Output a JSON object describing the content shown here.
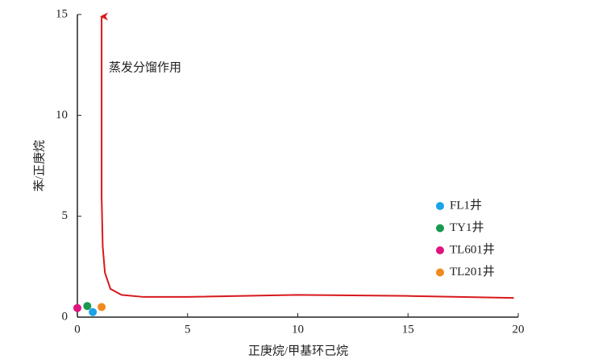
{
  "chart_data": {
    "type": "scatter",
    "x_label": "正庚烷/甲基环己烷",
    "y_label": "苯/正庚烷",
    "xlim": [
      0,
      20
    ],
    "ylim": [
      0,
      15
    ],
    "xticks": [
      0,
      5,
      10,
      15,
      20
    ],
    "yticks": [
      0,
      5,
      10,
      15
    ],
    "series": [
      {
        "name": "FL1井",
        "color": "#1aa3e8",
        "x": [
          0.7
        ],
        "values": [
          0.25
        ]
      },
      {
        "name": "TY1井",
        "color": "#1a9a50",
        "x": [
          0.45
        ],
        "values": [
          0.55
        ]
      },
      {
        "name": "TL601井",
        "color": "#e0147f",
        "x": [
          0.0
        ],
        "values": [
          0.45
        ]
      },
      {
        "name": "TL201井",
        "color": "#f08a1e",
        "x": [
          1.1
        ],
        "values": [
          0.5
        ]
      }
    ],
    "annotation": {
      "text": "蒸发分馏作用",
      "color": "#d7191c",
      "x": [
        19.8,
        15,
        10,
        5,
        3,
        2,
        1.5,
        1.25,
        1.15,
        1.1,
        1.1
      ],
      "y": [
        0.95,
        1.05,
        1.1,
        1.0,
        1.0,
        1.1,
        1.4,
        2.2,
        3.5,
        6,
        14.9
      ]
    }
  }
}
